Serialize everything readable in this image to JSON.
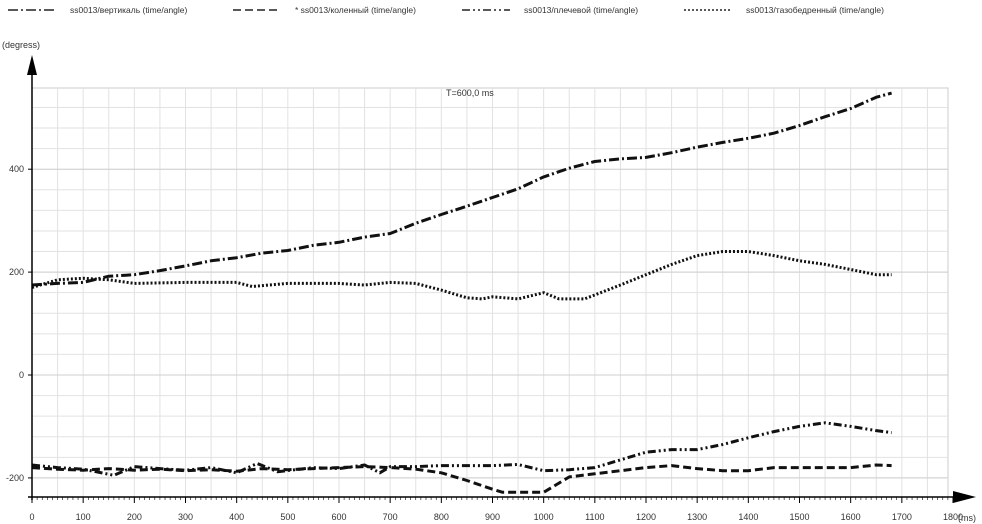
{
  "chart_data": {
    "type": "line",
    "title": "",
    "annotation": "T=600,0 ms",
    "xlabel": "(ms)",
    "ylabel": "(degress)",
    "xlim": [
      0,
      1800
    ],
    "ylim": [
      -250,
      560
    ],
    "grid": true,
    "legend_position": "top",
    "x_ticks": [
      0,
      100,
      200,
      300,
      400,
      500,
      600,
      700,
      800,
      900,
      1000,
      1100,
      1200,
      1300,
      1400,
      1500,
      1600,
      1700,
      1800
    ],
    "x_tick_labels": [
      "0",
      "100",
      "200",
      "300",
      "400",
      "500",
      "600",
      "700",
      "800",
      "900",
      "1000",
      "1100",
      "1200",
      "1300",
      "1400",
      "1500",
      "1600",
      "1700",
      "1800"
    ],
    "y_ticks": [
      -200,
      0,
      200,
      400
    ],
    "y_tick_labels": [
      "-200",
      "0",
      "200",
      "400"
    ],
    "series": [
      {
        "name": "ss0013/вертикаль (time/angle)",
        "style": "dashdot",
        "x": [
          0,
          50,
          100,
          150,
          200,
          250,
          300,
          350,
          400,
          450,
          500,
          550,
          600,
          650,
          700,
          750,
          800,
          850,
          900,
          950,
          1000,
          1050,
          1100,
          1150,
          1200,
          1250,
          1300,
          1350,
          1400,
          1450,
          1500,
          1550,
          1600,
          1650,
          1680
        ],
        "y": [
          175,
          178,
          180,
          192,
          195,
          203,
          212,
          222,
          228,
          237,
          242,
          252,
          258,
          268,
          275,
          295,
          312,
          328,
          345,
          362,
          385,
          402,
          415,
          420,
          423,
          432,
          443,
          452,
          460,
          470,
          485,
          502,
          518,
          540,
          548
        ]
      },
      {
        "name": "* ss0013/коленный (time/angle)",
        "style": "dashed",
        "x": [
          0,
          50,
          100,
          150,
          200,
          250,
          300,
          350,
          400,
          450,
          500,
          550,
          600,
          650,
          700,
          750,
          800,
          850,
          900,
          920,
          1000,
          1050,
          1100,
          1150,
          1200,
          1250,
          1300,
          1350,
          1400,
          1450,
          1500,
          1550,
          1600,
          1650,
          1680
        ],
        "y": [
          -180,
          -183,
          -185,
          -182,
          -185,
          -183,
          -186,
          -184,
          -187,
          -182,
          -184,
          -182,
          -180,
          -178,
          -180,
          -183,
          -190,
          -205,
          -222,
          -228,
          -228,
          -198,
          -192,
          -186,
          -180,
          -176,
          -182,
          -186,
          -186,
          -180,
          -180,
          -180,
          -180,
          -175,
          -176
        ]
      },
      {
        "name": "ss0013/плечевой (time/angle)",
        "style": "dashdotdot",
        "x": [
          0,
          50,
          100,
          160,
          200,
          250,
          300,
          350,
          400,
          440,
          480,
          550,
          600,
          650,
          680,
          700,
          750,
          800,
          850,
          900,
          950,
          1000,
          1050,
          1100,
          1150,
          1200,
          1250,
          1300,
          1350,
          1400,
          1450,
          1500,
          1550,
          1600,
          1650,
          1680
        ],
        "y": [
          -175,
          -180,
          -183,
          -195,
          -178,
          -182,
          -185,
          -180,
          -190,
          -172,
          -188,
          -180,
          -182,
          -175,
          -190,
          -178,
          -178,
          -176,
          -176,
          -176,
          -174,
          -186,
          -184,
          -180,
          -165,
          -150,
          -145,
          -145,
          -135,
          -122,
          -110,
          -100,
          -93,
          -100,
          -108,
          -112
        ]
      },
      {
        "name": "ss0013/тазобедренный (time/angle)",
        "style": "dotted",
        "x": [
          0,
          50,
          100,
          150,
          200,
          300,
          400,
          430,
          500,
          600,
          650,
          700,
          750,
          800,
          850,
          880,
          900,
          950,
          1000,
          1030,
          1080,
          1150,
          1200,
          1250,
          1300,
          1350,
          1400,
          1450,
          1500,
          1550,
          1600,
          1650,
          1680
        ],
        "y": [
          170,
          185,
          188,
          185,
          178,
          180,
          180,
          172,
          178,
          178,
          175,
          180,
          178,
          165,
          150,
          148,
          152,
          148,
          160,
          148,
          148,
          175,
          195,
          215,
          232,
          240,
          240,
          232,
          222,
          215,
          205,
          195,
          195
        ]
      }
    ]
  }
}
